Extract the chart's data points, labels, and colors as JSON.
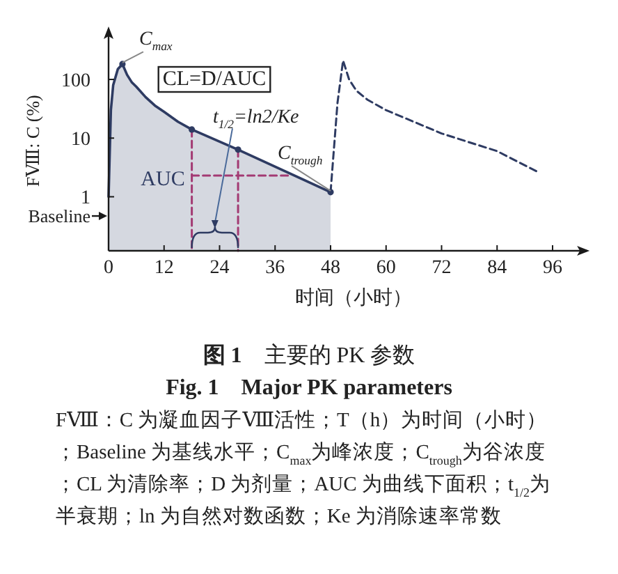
{
  "chart_data": {
    "type": "line",
    "title": "**图 1**　主要的 PK 参数",
    "subtitle": "Fig. 1　Major PK parameters",
    "xlabel": "时间（小时）",
    "ylabel": "FⅧ: C (%)",
    "xlim": [
      0,
      104
    ],
    "xticks": [
      0,
      12,
      24,
      36,
      48,
      60,
      72,
      84,
      96
    ],
    "ylim": [
      0.12,
      800
    ],
    "yticks": [
      {
        "value": 0.47,
        "label": "Baseline"
      },
      1,
      10,
      100
    ],
    "log": "y",
    "series": [
      {
        "type": "area",
        "color": "#2e3b62",
        "x": [
          0,
          0.5,
          1,
          2,
          3,
          4,
          5,
          6,
          8,
          10,
          12,
          15,
          18,
          28,
          48
        ],
        "values": [
          1,
          30,
          80,
          150,
          183,
          120,
          90,
          75,
          50,
          36,
          28,
          19,
          14,
          6.35,
          1.2
        ]
      },
      {
        "color": "#2e3b62",
        "line_style": "dashed",
        "x": [
          48,
          49.5,
          50.7,
          52,
          53.6,
          56,
          60,
          72,
          84,
          93
        ],
        "values": [
          1.2,
          40,
          210,
          100,
          64,
          45,
          30,
          12,
          6,
          2.6
        ]
      },
      {
        "color": "#a33a73",
        "line_style": "dashed",
        "x": [
          18,
          18
        ],
        "values": [
          14,
          0.12
        ]
      },
      {
        "color": "#a33a73",
        "line_style": "dashed",
        "x": [
          28,
          28
        ],
        "values": [
          6.35,
          0.12
        ]
      },
      {
        "color": "#a33a73",
        "line_style": "dashed",
        "x": [
          18,
          39
        ],
        "values": [
          2.3,
          2.3
        ]
      },
      {
        "type": "scatter",
        "color": "#2e3b62",
        "marker": "circle",
        "x": [
          3,
          18,
          28,
          48
        ],
        "values": [
          183,
          14,
          6.35,
          1.2
        ]
      }
    ],
    "annotations": [
      {
        "text": "C$_{max}$",
        "x": 3,
        "y": 183
      },
      {
        "text": "C$_{trough}$",
        "x": 48,
        "y": 1.2
      },
      "t$_{1/2}$=ln2/Ke",
      "CL=D/AUC",
      "AUC",
      "FⅧ：C 为凝血因子Ⅷ活性；T（h）为时间（小时）；Baseline 为基线水平；C$_{max}$为峰浓度；C$_{trough}$为谷浓度；CL 为清除率；D 为剂量；AUC 为曲线下面积；t$_{1/2}$为半衰期；ln 为自然对数函数；Ke 为消除速率常数"
    ]
  }
}
